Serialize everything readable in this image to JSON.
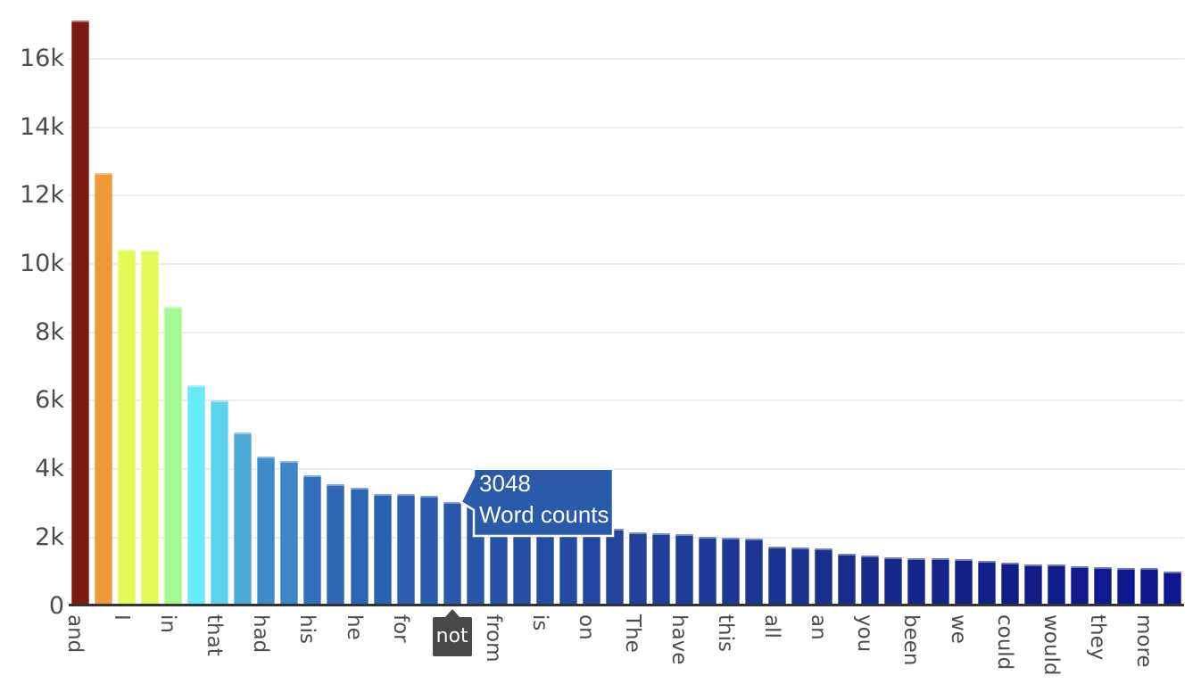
{
  "chart_data": {
    "type": "bar",
    "title": "",
    "xlabel": "",
    "ylabel": "",
    "series_name": "Word counts",
    "categories": [
      "and",
      "",
      "I",
      "",
      "in",
      "",
      "that",
      "",
      "had",
      "",
      "his",
      "",
      "he",
      "",
      "for",
      "",
      "not",
      "",
      "from",
      "",
      "is",
      "",
      "on",
      "",
      "The",
      "",
      "have",
      "",
      "this",
      "",
      "all",
      "",
      "an",
      "",
      "you",
      "",
      "been",
      "",
      "we",
      "",
      "could",
      "",
      "would",
      "",
      "they",
      "",
      "more",
      ""
    ],
    "values": [
      17110,
      12660,
      10430,
      10400,
      8760,
      6460,
      6010,
      5060,
      4360,
      4230,
      3810,
      3550,
      3450,
      3270,
      3260,
      3220,
      3048,
      2960,
      2860,
      2760,
      2660,
      2550,
      2400,
      2265,
      2145,
      2135,
      2100,
      2030,
      2005,
      1970,
      1725,
      1715,
      1690,
      1515,
      1465,
      1420,
      1395,
      1390,
      1360,
      1310,
      1270,
      1225,
      1205,
      1160,
      1135,
      1105,
      1100,
      1015
    ],
    "bar_colors": [
      "#7a1a10",
      "#ef9a3a",
      "#e4fa55",
      "#e3f955",
      "#a4fa90",
      "#67ebf7",
      "#5cd3e8",
      "#4fabd6",
      "#3e8bc9",
      "#3d87c6",
      "#336fbb",
      "#2f68b5",
      "#2d64b4",
      "#2c61b2",
      "#2b5eb0",
      "#2a5bae",
      "#2958ac",
      "#2855aa",
      "#2752a8",
      "#264fa6",
      "#254ca4",
      "#2449a2",
      "#2346a0",
      "#22449e",
      "#21419c",
      "#203f9a",
      "#1f3c98",
      "#1e3a96",
      "#1d3894",
      "#1c3592",
      "#1b3390",
      "#1a318f",
      "#192f8e",
      "#182c8d",
      "#172a8c",
      "#16288b",
      "#15268a",
      "#142489",
      "#142288",
      "#132087",
      "#121e88",
      "#121c89",
      "#111b8b",
      "#111a8c",
      "#10198d",
      "#10188e",
      "#0f178f",
      "#0e1690"
    ],
    "y_ticks": [
      "0",
      "2k",
      "4k",
      "6k",
      "8k",
      "10k",
      "12k",
      "14k",
      "16k"
    ],
    "y_tick_values": [
      0,
      2000,
      4000,
      6000,
      8000,
      10000,
      12000,
      14000,
      16000
    ],
    "ylim": [
      0,
      17200
    ],
    "grid": "horizontal",
    "legend": "none",
    "x_label_step": 2
  },
  "tooltip": {
    "value": "3048",
    "series_label": "Word counts",
    "target_category": "not",
    "fill_color": "#2b5aab",
    "border_color": "#ffffff",
    "text_color": "#ffffff"
  },
  "crosshair": {
    "label": "not",
    "fill_color": "#484848",
    "text_color": "#ffffff"
  },
  "colors": {
    "background": "#ffffff",
    "axis_line": "#333333",
    "grid_line": "#ededed",
    "tick_text": "#4d4d4d"
  }
}
